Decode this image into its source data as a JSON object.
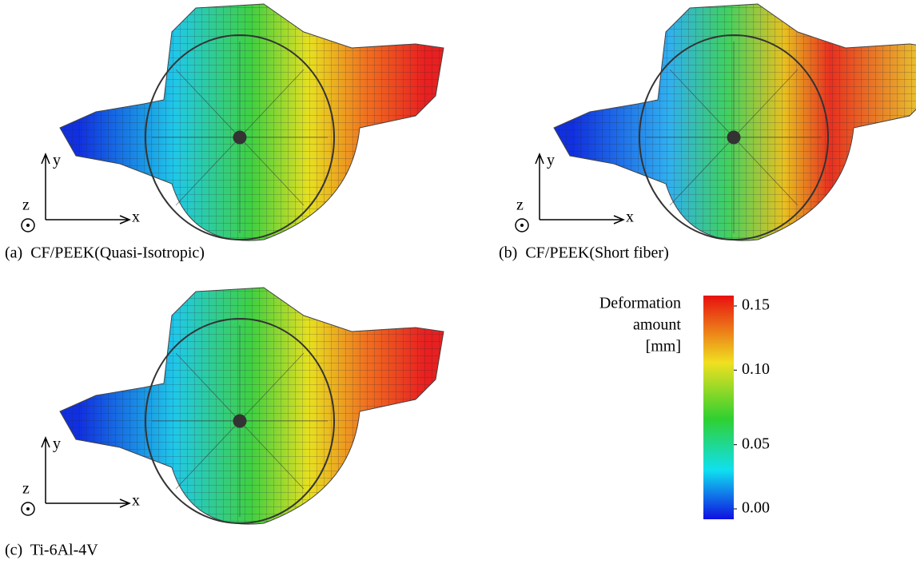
{
  "panels": [
    {
      "caption": "(a)  CF/PEEK(Quasi-Isotropic)",
      "axes": {
        "x": "x",
        "y": "y",
        "z": "z"
      }
    },
    {
      "caption": "(b)  CF/PEEK(Short fiber)",
      "axes": {
        "x": "x",
        "y": "y",
        "z": "z"
      }
    },
    {
      "caption": "(c)  Ti-6Al-4V",
      "axes": {
        "x": "x",
        "y": "y",
        "z": "z"
      }
    }
  ],
  "colorbar": {
    "title": [
      "Deformation",
      "amount",
      "[mm]"
    ],
    "lim": [
      0,
      0.15
    ],
    "ticks": [
      {
        "value": 0,
        "label": "0.00"
      },
      {
        "value": 0.05,
        "label": "0.05"
      },
      {
        "value": 0.1,
        "label": "0.10"
      },
      {
        "value": 0.15,
        "label": "0.15"
      }
    ]
  }
}
